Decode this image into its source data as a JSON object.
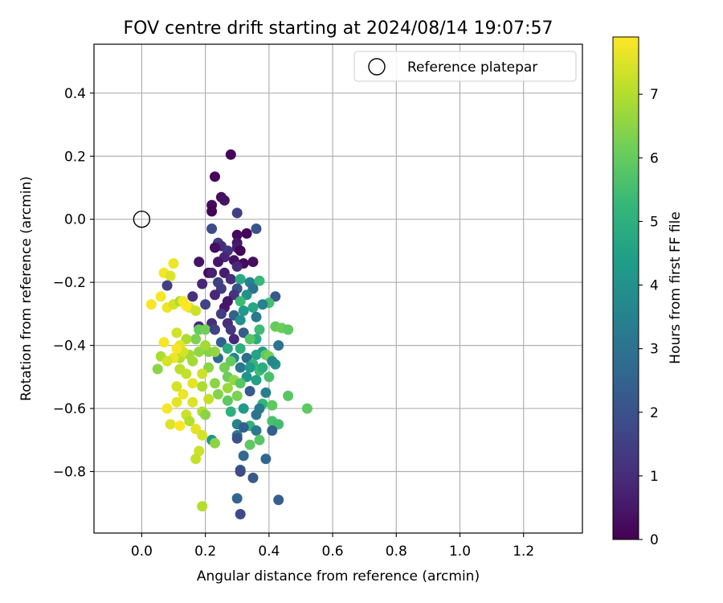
{
  "chart_data": {
    "type": "scatter",
    "title": "FOV centre drift starting at 2024/08/14 19:07:57",
    "xlabel": "Angular distance from reference (arcmin)",
    "ylabel": "Rotation from reference (arcmin)",
    "xlim": [
      -0.15,
      1.385
    ],
    "ylim": [
      -0.995,
      0.555
    ],
    "xticks": [
      "0.0",
      "0.2",
      "0.4",
      "0.6",
      "0.8",
      "1.0",
      "1.2"
    ],
    "xtick_values": [
      0.0,
      0.2,
      0.4,
      0.6,
      0.8,
      1.0,
      1.2
    ],
    "yticks": [
      "0.4",
      "0.2",
      "0.0",
      "−0.2",
      "−0.4",
      "−0.6",
      "−0.8"
    ],
    "ytick_values": [
      0.4,
      0.2,
      0.0,
      -0.2,
      -0.4,
      -0.6,
      -0.8
    ],
    "grid": true,
    "legend": {
      "placement": "top-right",
      "entries": [
        "Reference platepar"
      ]
    },
    "reference_point": {
      "x": 0.0,
      "y": 0.0,
      "label": "Reference platepar"
    },
    "colorbar": {
      "label": "Hours from first FF file",
      "range": [
        0,
        7.9
      ],
      "ticks": [
        "0",
        "1",
        "2",
        "3",
        "4",
        "5",
        "6",
        "7"
      ],
      "tick_values": [
        0,
        1,
        2,
        3,
        4,
        5,
        6,
        7
      ],
      "colormap": "viridis",
      "colors": [
        "#440154",
        "#482878",
        "#3e4989",
        "#31688e",
        "#26828e",
        "#1f9e89",
        "#35b779",
        "#6ece58",
        "#b5de2b",
        "#fde725"
      ]
    },
    "series": [
      {
        "marker": "filled-circle",
        "points": [
          [
            0.28,
            0.205,
            0.1
          ],
          [
            0.23,
            0.135,
            0.15
          ],
          [
            0.25,
            0.07,
            0.3
          ],
          [
            0.26,
            0.06,
            0.4
          ],
          [
            0.22,
            0.045,
            0.2
          ],
          [
            0.22,
            0.025,
            0.1
          ],
          [
            0.3,
            0.02,
            1.5
          ],
          [
            0.22,
            -0.03,
            1.8
          ],
          [
            0.36,
            -0.03,
            2.0
          ],
          [
            0.3,
            -0.05,
            0.2
          ],
          [
            0.33,
            -0.045,
            0.1
          ],
          [
            0.24,
            -0.075,
            1.5
          ],
          [
            0.25,
            -0.085,
            1.0
          ],
          [
            0.3,
            -0.075,
            0.5
          ],
          [
            0.23,
            -0.09,
            0.3
          ],
          [
            0.3,
            -0.09,
            0.6
          ],
          [
            0.31,
            -0.1,
            0.1
          ],
          [
            0.27,
            -0.1,
            1.2
          ],
          [
            0.26,
            -0.12,
            0.8
          ],
          [
            0.18,
            -0.135,
            0.4
          ],
          [
            0.24,
            -0.135,
            0.5
          ],
          [
            0.29,
            -0.13,
            0.4
          ],
          [
            0.32,
            -0.14,
            0.2
          ],
          [
            0.35,
            -0.135,
            0.3
          ],
          [
            0.3,
            -0.15,
            0.9
          ],
          [
            0.21,
            -0.17,
            0.2
          ],
          [
            0.26,
            -0.17,
            0.6
          ],
          [
            0.22,
            -0.17,
            0.7
          ],
          [
            0.28,
            -0.19,
            1.0
          ],
          [
            0.31,
            -0.19,
            4.8
          ],
          [
            0.34,
            -0.2,
            3.5
          ],
          [
            0.37,
            -0.195,
            5.3
          ],
          [
            0.24,
            -0.2,
            1.5
          ],
          [
            0.19,
            -0.205,
            0.8
          ],
          [
            0.25,
            -0.22,
            1.4
          ],
          [
            0.3,
            -0.22,
            2.0
          ],
          [
            0.35,
            -0.22,
            3.0
          ],
          [
            0.29,
            -0.24,
            1.2
          ],
          [
            0.23,
            -0.24,
            0.9
          ],
          [
            0.27,
            -0.26,
            0.5
          ],
          [
            0.33,
            -0.24,
            4.0
          ],
          [
            0.42,
            -0.245,
            2.2
          ],
          [
            0.4,
            -0.265,
            5.5
          ],
          [
            0.38,
            -0.27,
            3.5
          ],
          [
            0.31,
            -0.26,
            5.4
          ],
          [
            0.32,
            -0.29,
            4.3
          ],
          [
            0.2,
            -0.27,
            1.6
          ],
          [
            0.26,
            -0.28,
            0.5
          ],
          [
            0.25,
            -0.3,
            1.4
          ],
          [
            0.35,
            -0.28,
            4.7
          ],
          [
            0.29,
            -0.305,
            2.5
          ],
          [
            0.36,
            -0.31,
            3.2
          ],
          [
            0.31,
            -0.32,
            4.0
          ],
          [
            0.27,
            -0.33,
            1.0
          ],
          [
            0.22,
            -0.33,
            1.1
          ],
          [
            0.18,
            -0.34,
            0.9
          ],
          [
            0.18,
            -0.35,
            6.0
          ],
          [
            0.2,
            -0.35,
            6.2
          ],
          [
            0.23,
            -0.35,
            1.6
          ],
          [
            0.28,
            -0.35,
            1.3
          ],
          [
            0.32,
            -0.36,
            2.3
          ],
          [
            0.42,
            -0.34,
            6.0
          ],
          [
            0.44,
            -0.345,
            6.1
          ],
          [
            0.46,
            -0.35,
            5.9
          ],
          [
            0.37,
            -0.35,
            5.4
          ],
          [
            0.36,
            -0.38,
            4.9
          ],
          [
            0.34,
            -0.38,
            5.8
          ],
          [
            0.17,
            -0.38,
            6.3
          ],
          [
            0.29,
            -0.38,
            0.9
          ],
          [
            0.25,
            -0.39,
            2.4
          ],
          [
            0.43,
            -0.4,
            3.0
          ],
          [
            0.31,
            -0.41,
            5.0
          ],
          [
            0.38,
            -0.42,
            4.2
          ],
          [
            0.27,
            -0.41,
            4.8
          ],
          [
            0.21,
            -0.42,
            6.4
          ],
          [
            0.18,
            -0.42,
            6.6
          ],
          [
            0.15,
            -0.43,
            6.8
          ],
          [
            0.36,
            -0.43,
            4.6
          ],
          [
            0.39,
            -0.43,
            6.0
          ],
          [
            0.4,
            -0.435,
            6.2
          ],
          [
            0.33,
            -0.44,
            2.8
          ],
          [
            0.29,
            -0.44,
            3.7
          ],
          [
            0.24,
            -0.44,
            2.7
          ],
          [
            0.12,
            -0.44,
            7.0
          ],
          [
            0.06,
            -0.435,
            6.9
          ],
          [
            0.1,
            -0.44,
            7.7
          ],
          [
            0.08,
            -0.45,
            7.4
          ],
          [
            0.16,
            -0.45,
            6.8
          ],
          [
            0.42,
            -0.46,
            4.0
          ],
          [
            0.41,
            -0.45,
            3.7
          ],
          [
            0.35,
            -0.46,
            5.2
          ],
          [
            0.31,
            -0.47,
            3.1
          ],
          [
            0.26,
            -0.47,
            6.2
          ],
          [
            0.21,
            -0.47,
            6.5
          ],
          [
            0.05,
            -0.475,
            6.5
          ],
          [
            0.12,
            -0.475,
            7.1
          ],
          [
            0.14,
            -0.49,
            7.2
          ],
          [
            0.19,
            -0.49,
            7.3
          ],
          [
            0.37,
            -0.48,
            5.4
          ],
          [
            0.4,
            -0.5,
            5.6
          ],
          [
            0.33,
            -0.5,
            4.1
          ],
          [
            0.27,
            -0.5,
            6.1
          ],
          [
            0.29,
            -0.51,
            6.6
          ],
          [
            0.23,
            -0.52,
            6.5
          ],
          [
            0.16,
            -0.52,
            7.6
          ],
          [
            0.36,
            -0.51,
            4.5
          ],
          [
            0.31,
            -0.52,
            5.8
          ],
          [
            0.11,
            -0.53,
            7.4
          ],
          [
            0.19,
            -0.53,
            6.9
          ],
          [
            0.27,
            -0.535,
            6.7
          ],
          [
            0.34,
            -0.545,
            2.2
          ],
          [
            0.39,
            -0.55,
            3.4
          ],
          [
            0.46,
            -0.56,
            5.8
          ],
          [
            0.24,
            -0.555,
            6.4
          ],
          [
            0.13,
            -0.555,
            7.7
          ],
          [
            0.3,
            -0.56,
            6.3
          ],
          [
            0.21,
            -0.57,
            7.2
          ],
          [
            0.27,
            -0.575,
            5.9
          ],
          [
            0.16,
            -0.58,
            7.5
          ],
          [
            0.11,
            -0.58,
            7.6
          ],
          [
            0.38,
            -0.585,
            5.2
          ],
          [
            0.41,
            -0.59,
            5.9
          ],
          [
            0.52,
            -0.6,
            5.9
          ],
          [
            0.08,
            -0.6,
            7.8
          ],
          [
            0.37,
            -0.6,
            3.3
          ],
          [
            0.32,
            -0.6,
            4.3
          ],
          [
            0.28,
            -0.61,
            5.0
          ],
          [
            0.19,
            -0.61,
            7.0
          ],
          [
            0.14,
            -0.62,
            7.3
          ],
          [
            0.2,
            -0.62,
            6.5
          ],
          [
            0.36,
            -0.62,
            3.0
          ],
          [
            0.41,
            -0.64,
            5.6
          ],
          [
            0.43,
            -0.65,
            5.5
          ],
          [
            0.3,
            -0.65,
            3.5
          ],
          [
            0.34,
            -0.655,
            5.1
          ],
          [
            0.15,
            -0.64,
            7.0
          ],
          [
            0.09,
            -0.65,
            7.5
          ],
          [
            0.12,
            -0.655,
            7.9
          ],
          [
            0.17,
            -0.665,
            7.6
          ],
          [
            0.32,
            -0.66,
            2.4
          ],
          [
            0.36,
            -0.67,
            3.2
          ],
          [
            0.41,
            -0.67,
            2.4
          ],
          [
            0.3,
            -0.685,
            3.2
          ],
          [
            0.3,
            -0.695,
            2.0
          ],
          [
            0.19,
            -0.685,
            7.4
          ],
          [
            0.22,
            -0.7,
            4.1
          ],
          [
            0.23,
            -0.71,
            6.5
          ],
          [
            0.37,
            -0.7,
            5.8
          ],
          [
            0.34,
            -0.715,
            5.9
          ],
          [
            0.18,
            -0.735,
            7.3
          ],
          [
            0.32,
            -0.75,
            2.7
          ],
          [
            0.39,
            -0.76,
            2.6
          ],
          [
            0.17,
            -0.76,
            7.2
          ],
          [
            0.31,
            -0.795,
            2.4
          ],
          [
            0.31,
            -0.8,
            1.8
          ],
          [
            0.35,
            -0.82,
            2.2
          ],
          [
            0.3,
            -0.885,
            2.6
          ],
          [
            0.43,
            -0.89,
            2.4
          ],
          [
            0.19,
            -0.91,
            7.0
          ],
          [
            0.31,
            -0.935,
            1.8
          ],
          [
            0.1,
            -0.14,
            7.7
          ],
          [
            0.07,
            -0.17,
            7.8
          ],
          [
            0.09,
            -0.18,
            7.5
          ],
          [
            0.08,
            -0.21,
            1.5
          ],
          [
            0.06,
            -0.245,
            7.8
          ],
          [
            0.03,
            -0.27,
            7.8
          ],
          [
            0.08,
            -0.28,
            7.7
          ],
          [
            0.1,
            -0.27,
            7.4
          ],
          [
            0.12,
            -0.26,
            6.9
          ],
          [
            0.13,
            -0.26,
            7.8
          ],
          [
            0.15,
            -0.28,
            7.5
          ],
          [
            0.14,
            -0.275,
            7.9
          ],
          [
            0.16,
            -0.245,
            1.1
          ],
          [
            0.17,
            -0.29,
            7.3
          ],
          [
            0.14,
            -0.38,
            6.9
          ],
          [
            0.11,
            -0.36,
            7.4
          ],
          [
            0.12,
            -0.4,
            7.6
          ],
          [
            0.07,
            -0.39,
            7.8
          ],
          [
            0.13,
            -0.42,
            7.4
          ],
          [
            0.11,
            -0.41,
            7.8
          ],
          [
            0.2,
            -0.4,
            6.8
          ],
          [
            0.23,
            -0.42,
            6.6
          ],
          [
            0.34,
            -0.47,
            4.3
          ],
          [
            0.38,
            -0.47,
            4.9
          ],
          [
            0.28,
            -0.45,
            6.0
          ]
        ]
      }
    ]
  }
}
